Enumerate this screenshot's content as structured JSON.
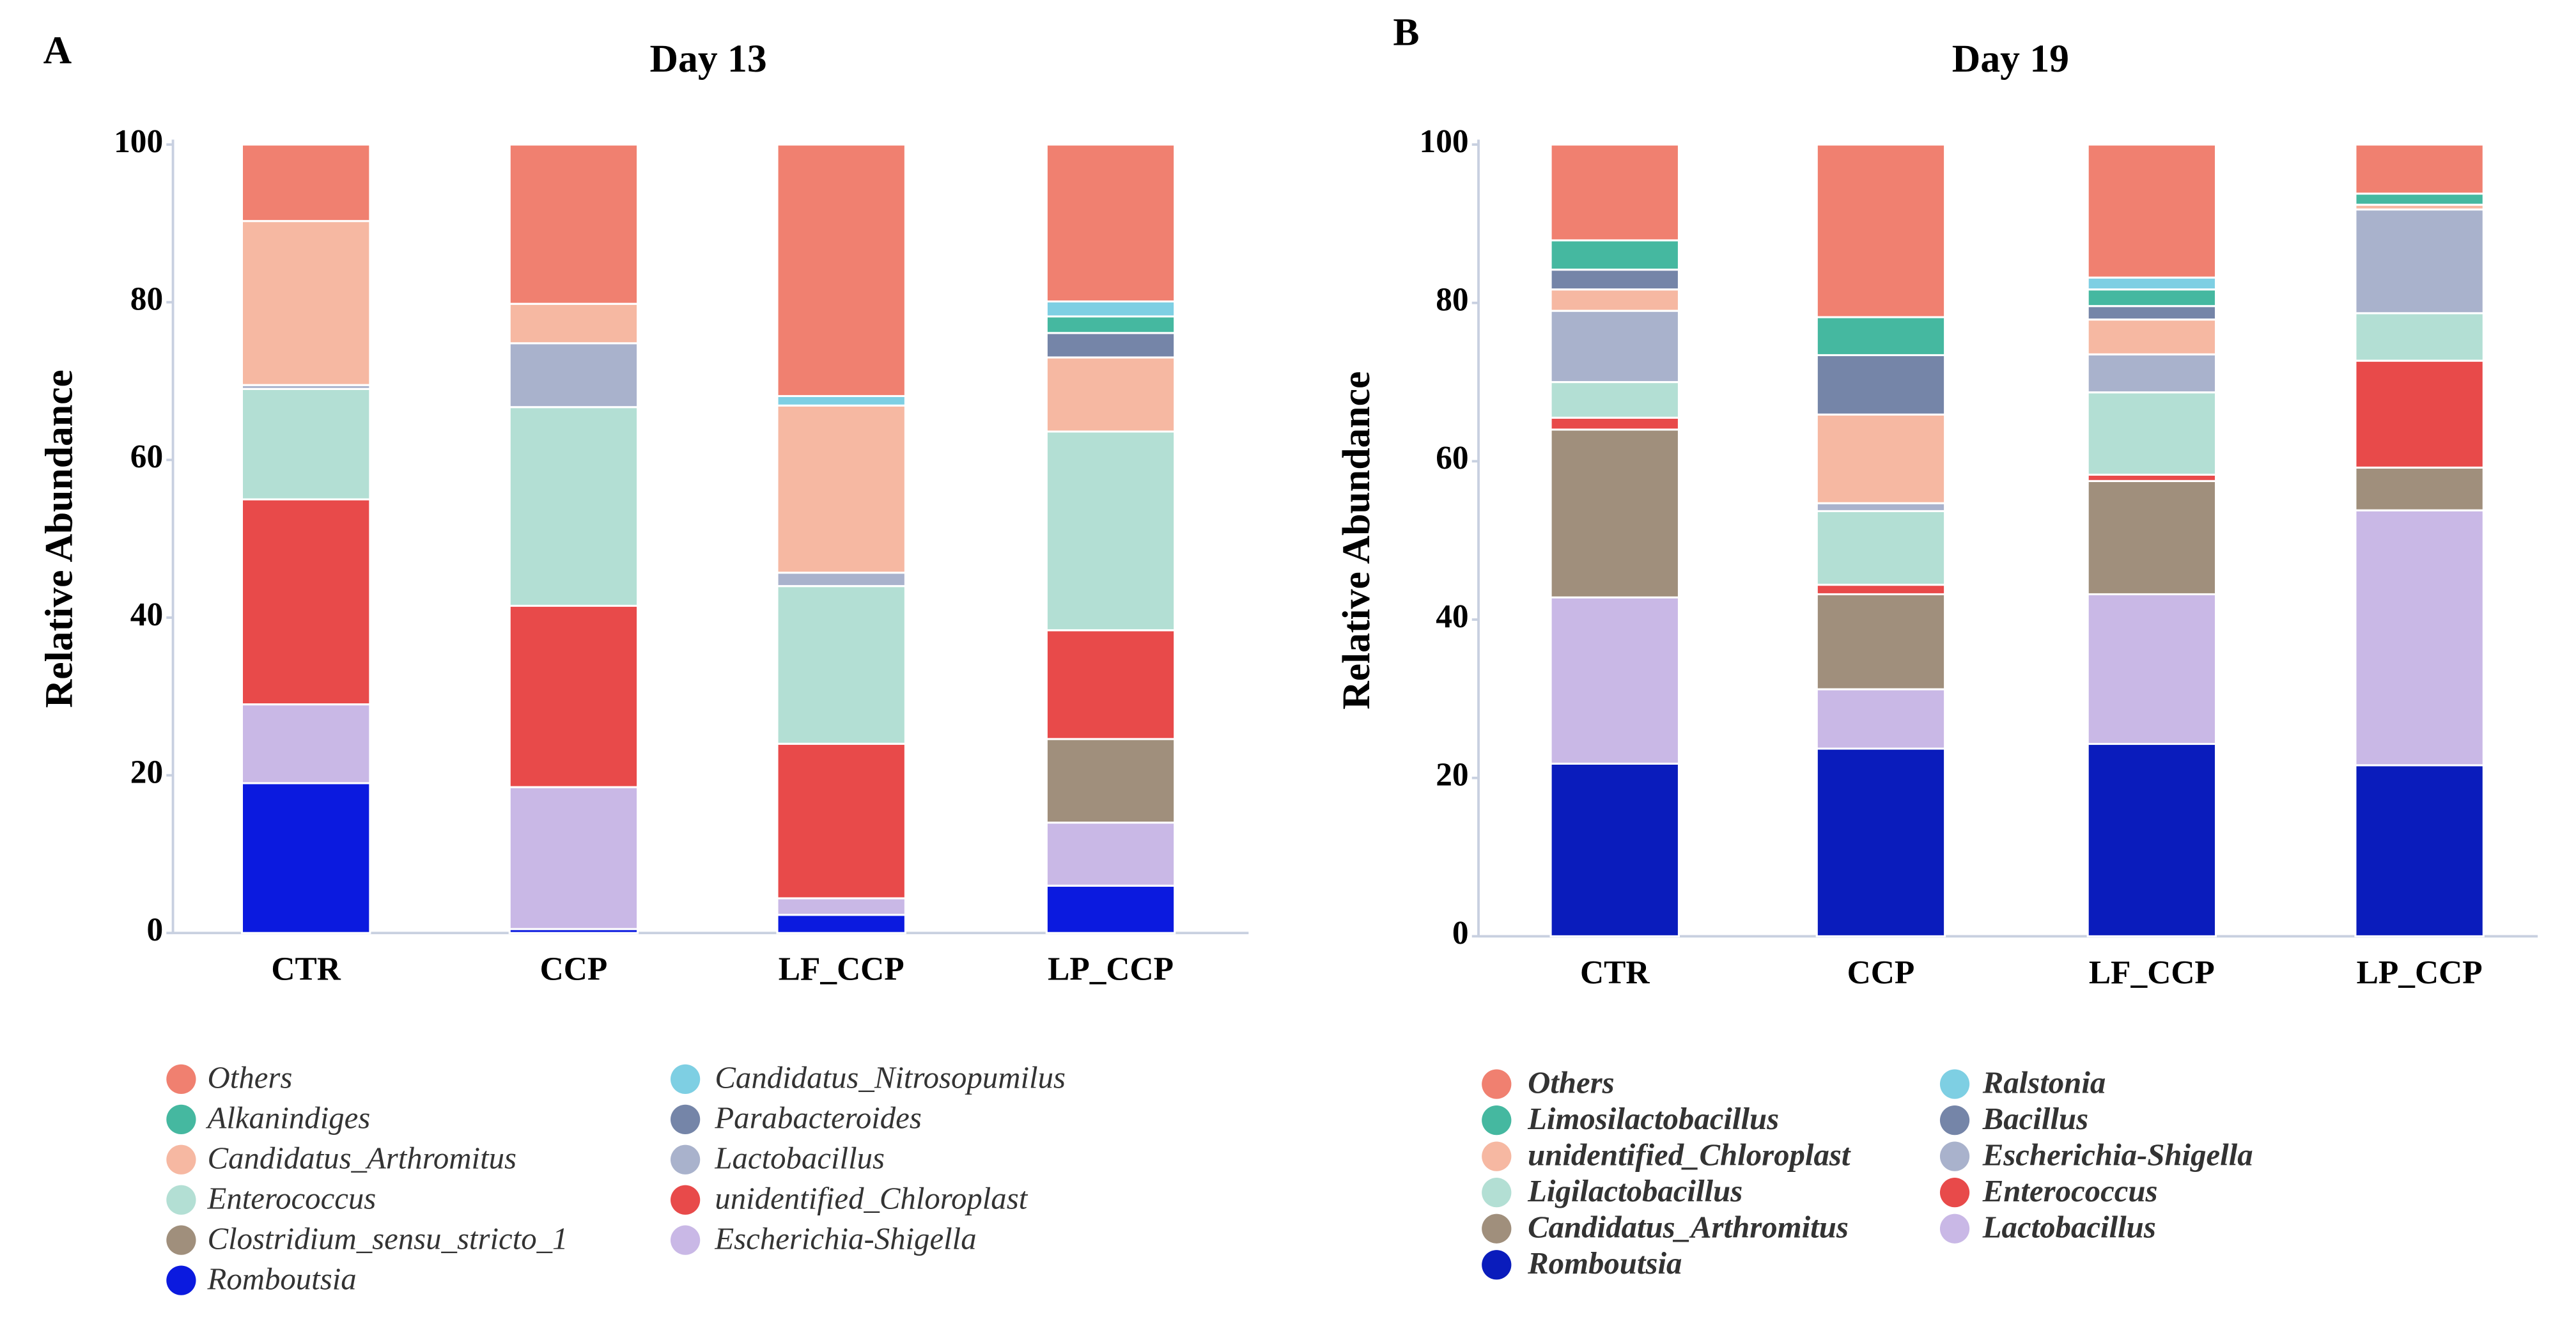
{
  "chart_data": [
    {
      "type": "stacked_bar",
      "panel": "A",
      "title": "Day 13",
      "ylabel": "Relative Abundance",
      "categories": [
        "CTR",
        "CCP",
        "LF_CCP",
        "LP_CCP"
      ],
      "ylim": [
        0,
        100
      ],
      "yticks": [
        0,
        20,
        40,
        60,
        80,
        100
      ],
      "series": [
        {
          "name": "Others",
          "color": "#f08070",
          "values": [
            9.7,
            20.2,
            31.9,
            19.9
          ]
        },
        {
          "name": "Alkanindiges",
          "color": "#45b8a0",
          "values": [
            0,
            0,
            0,
            2.1
          ]
        },
        {
          "name": "Candidatus_Arthromitus",
          "color": "#f6b8a2",
          "values": [
            20.8,
            5,
            21.2,
            9.4
          ]
        },
        {
          "name": "Enterococcus",
          "color": "#b3dfd4",
          "values": [
            14,
            25.2,
            20,
            25.2
          ]
        },
        {
          "name": "Clostridium_sensu_stricto_1",
          "color": "#a08f7c",
          "values": [
            0,
            0,
            0,
            10.6
          ]
        },
        {
          "name": "Romboutsia",
          "color": "#0b1adf",
          "values": [
            19,
            0.5,
            2.3,
            6
          ]
        },
        {
          "name": "Candidatus_Nitrosopumilus",
          "color": "#7ecfe3",
          "values": [
            0,
            0,
            1.2,
            1.9
          ]
        },
        {
          "name": "Parabacteroides",
          "color": "#7585a8",
          "values": [
            0,
            0,
            0,
            3.1
          ]
        },
        {
          "name": "Lactobacillus",
          "color": "#a9b2cc",
          "values": [
            0.5,
            8.1,
            1.7,
            0
          ]
        },
        {
          "name": "unidentified_Chloroplast",
          "color": "#e84a4a",
          "values": [
            26,
            23,
            19.6,
            13.8
          ]
        },
        {
          "name": "Escherichia-Shigella",
          "color": "#c9b8e6",
          "values": [
            10,
            18,
            2.1,
            8
          ]
        }
      ]
    },
    {
      "type": "stacked_bar",
      "panel": "B",
      "title": "Day 19",
      "ylabel": "Relative Abundance",
      "categories": [
        "CTR",
        "CCP",
        "LF_CCP",
        "LP_CCP"
      ],
      "ylim": [
        0,
        100
      ],
      "yticks": [
        0,
        20,
        40,
        60,
        80,
        100
      ],
      "series": [
        {
          "name": "Others",
          "color": "#f08070",
          "values": [
            12.1,
            21.8,
            16.8,
            6.2
          ]
        },
        {
          "name": "Limosilactobacillus",
          "color": "#45b8a0",
          "values": [
            3.7,
            4.8,
            2.1,
            1.4
          ]
        },
        {
          "name": "unidentified_Chloroplast",
          "color": "#f6b8a2",
          "values": [
            2.7,
            11.2,
            4.4,
            0.6
          ]
        },
        {
          "name": "Ligilactobacillus",
          "color": "#b3dfd4",
          "values": [
            4.5,
            9.3,
            10.4,
            6
          ]
        },
        {
          "name": "Candidatus_Arthromitus",
          "color": "#a08f7c",
          "values": [
            21.2,
            12,
            14.3,
            5.4
          ]
        },
        {
          "name": "Romboutsia",
          "color": "#0a1cbc",
          "values": [
            21.8,
            23.7,
            24.3,
            21.6
          ]
        },
        {
          "name": "Ralstonia",
          "color": "#7ecfe3",
          "values": [
            0,
            0,
            1.5,
            0
          ]
        },
        {
          "name": "Bacillus",
          "color": "#7585a8",
          "values": [
            2.5,
            7.5,
            1.7,
            0
          ]
        },
        {
          "name": "Escherichia-Shigella",
          "color": "#a9b2cc",
          "values": [
            9,
            1,
            4.8,
            13.1
          ]
        },
        {
          "name": "Enterococcus",
          "color": "#e84a4a",
          "values": [
            1.5,
            1.2,
            0.8,
            13.5
          ]
        },
        {
          "name": "Lactobacillus",
          "color": "#c9b8e6",
          "values": [
            21,
            7.5,
            18.9,
            32.2
          ]
        }
      ]
    }
  ]
}
